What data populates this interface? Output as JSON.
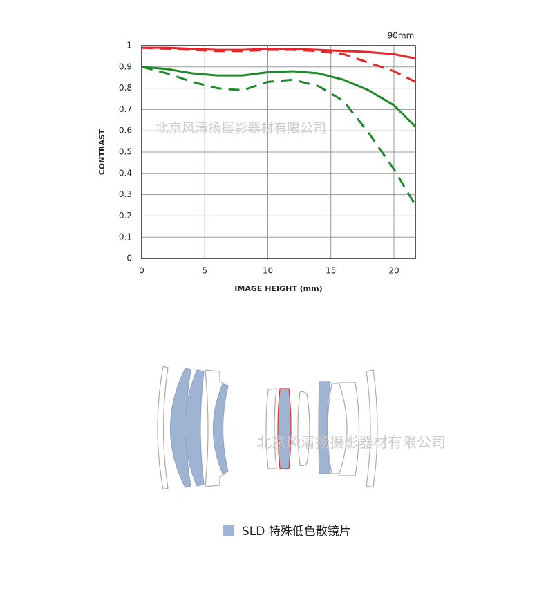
{
  "chart_data": {
    "type": "line",
    "annotation": "90mm",
    "ylabel": "CONTRAST",
    "xlabel": "IMAGE HEIGHT (mm)",
    "x": [
      0,
      2,
      4,
      6,
      8,
      10,
      12,
      14,
      16,
      18,
      20,
      21.7
    ],
    "series": [
      {
        "color": "#e8262a",
        "style": "solid",
        "values": [
          0.99,
          0.99,
          0.985,
          0.98,
          0.98,
          0.985,
          0.985,
          0.98,
          0.975,
          0.97,
          0.96,
          0.94
        ]
      },
      {
        "color": "#e8262a",
        "style": "dashed",
        "values": [
          0.99,
          0.985,
          0.98,
          0.975,
          0.975,
          0.98,
          0.98,
          0.975,
          0.96,
          0.92,
          0.88,
          0.83
        ]
      },
      {
        "color": "#1f8a2a",
        "style": "solid",
        "values": [
          0.9,
          0.89,
          0.87,
          0.86,
          0.86,
          0.875,
          0.88,
          0.87,
          0.84,
          0.79,
          0.72,
          0.62
        ]
      },
      {
        "color": "#1f8a2a",
        "style": "dashed",
        "values": [
          0.9,
          0.87,
          0.83,
          0.8,
          0.79,
          0.83,
          0.84,
          0.81,
          0.74,
          0.59,
          0.42,
          0.25
        ]
      }
    ],
    "xlim": [
      0,
      21.7
    ],
    "xticks": [
      0,
      5,
      10,
      15,
      20
    ],
    "ylim": [
      0,
      1
    ],
    "yticks": [
      0,
      0.1,
      0.2,
      0.3,
      0.4,
      0.5,
      0.6,
      0.7,
      0.8,
      0.9,
      1
    ],
    "grid": true
  },
  "watermark": "北京风清扬摄影器材有限公司",
  "legend": "SLD 特殊低色散镜片"
}
